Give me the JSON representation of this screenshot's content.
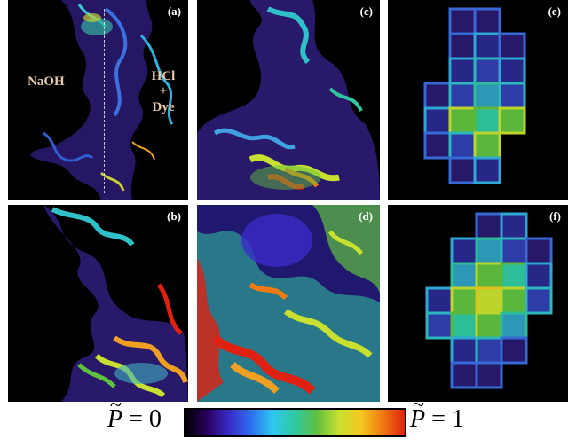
{
  "panels": [
    {
      "id": "a",
      "label": "(a)"
    },
    {
      "id": "b",
      "label": "(b)"
    },
    {
      "id": "c",
      "label": "(c)"
    },
    {
      "id": "d",
      "label": "(d)"
    },
    {
      "id": "e",
      "label": "(e)"
    },
    {
      "id": "f",
      "label": "(f)"
    }
  ],
  "annotations": {
    "left_fluid": "NaOH",
    "right_fluid_line1": "HCl",
    "right_fluid_line2": "+",
    "right_fluid_line3": "Dye"
  },
  "colorbar": {
    "min_symbol": "P",
    "min_text": " = 0",
    "max_symbol": "P",
    "max_text": " = 1",
    "tilde": "~",
    "colormap": [
      "#000000",
      "#2a0060",
      "#3a2cc8",
      "#2f6ff0",
      "#2fc8f0",
      "#30c8a0",
      "#60c040",
      "#c8e030",
      "#f4c820",
      "#f07a10",
      "#e02010"
    ]
  }
}
